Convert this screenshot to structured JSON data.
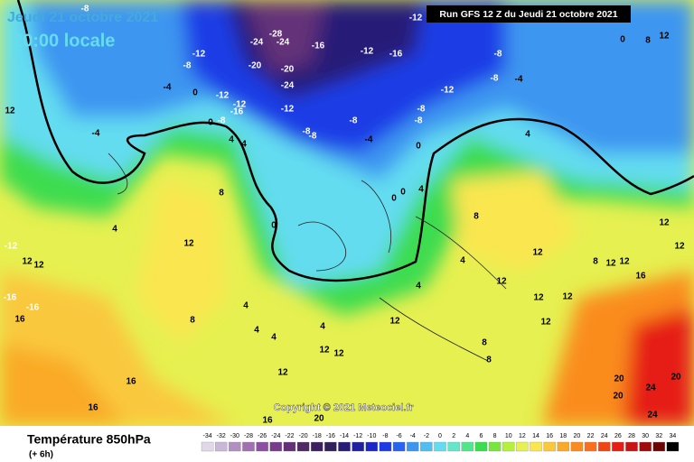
{
  "header": {
    "date": "Jeudi 21 octobre 2021",
    "time": "20:00 locale",
    "run": "Run GFS 12 Z du Jeudi 21 octobre 2021"
  },
  "copyright": "Copyright © 2021 Meteociel.fr",
  "footer": {
    "title": "Température 850hPa",
    "lead": "(+ 6h)"
  },
  "scale": {
    "labels": [
      -34,
      -32,
      -30,
      -28,
      -26,
      -24,
      -22,
      -20,
      -18,
      -16,
      -14,
      -12,
      -10,
      -8,
      -6,
      -4,
      -2,
      0,
      2,
      4,
      6,
      8,
      10,
      12,
      14,
      16,
      18,
      20,
      22,
      24,
      26,
      28,
      30,
      32,
      34
    ],
    "colors": [
      "#e0d8e8",
      "#c8b8d8",
      "#b090c0",
      "#a070b0",
      "#8c50a0",
      "#783c8c",
      "#643078",
      "#502868",
      "#3c2060",
      "#30205c",
      "#281c78",
      "#2020a0",
      "#1a28c8",
      "#1e3ce6",
      "#2864f0",
      "#3c96f0",
      "#50bef0",
      "#64dcf0",
      "#64e6c8",
      "#50e68c",
      "#3cdc50",
      "#78e63c",
      "#b4f03c",
      "#e6f050",
      "#fae650",
      "#fac83c",
      "#faaa28",
      "#fa8c1e",
      "#fa6e1e",
      "#f04614",
      "#e61e14",
      "#c81414",
      "#a00a0a",
      "#6e0505",
      "#000000"
    ]
  },
  "map_labels": [
    -8,
    -12,
    -28,
    -24,
    -24,
    -16,
    -12,
    -16,
    -20,
    -20,
    -24,
    -12,
    -8,
    -4,
    0,
    -12,
    -12,
    -16,
    -12,
    -8,
    -8,
    -8,
    -8,
    -4,
    -8,
    -8,
    -12,
    -8,
    -8,
    -4,
    0,
    8,
    12,
    12,
    -4,
    0,
    4,
    4,
    8,
    4,
    0,
    12,
    -12,
    12,
    12,
    -16,
    -16,
    16,
    8,
    4,
    4,
    4,
    4,
    12,
    12,
    12,
    16,
    16,
    16,
    20,
    12,
    4,
    4,
    8,
    12,
    12,
    12,
    16,
    12,
    12,
    12,
    12,
    8,
    8,
    20,
    20,
    24,
    24,
    20,
    4,
    0,
    0,
    0,
    4,
    12,
    12,
    8
  ]
}
